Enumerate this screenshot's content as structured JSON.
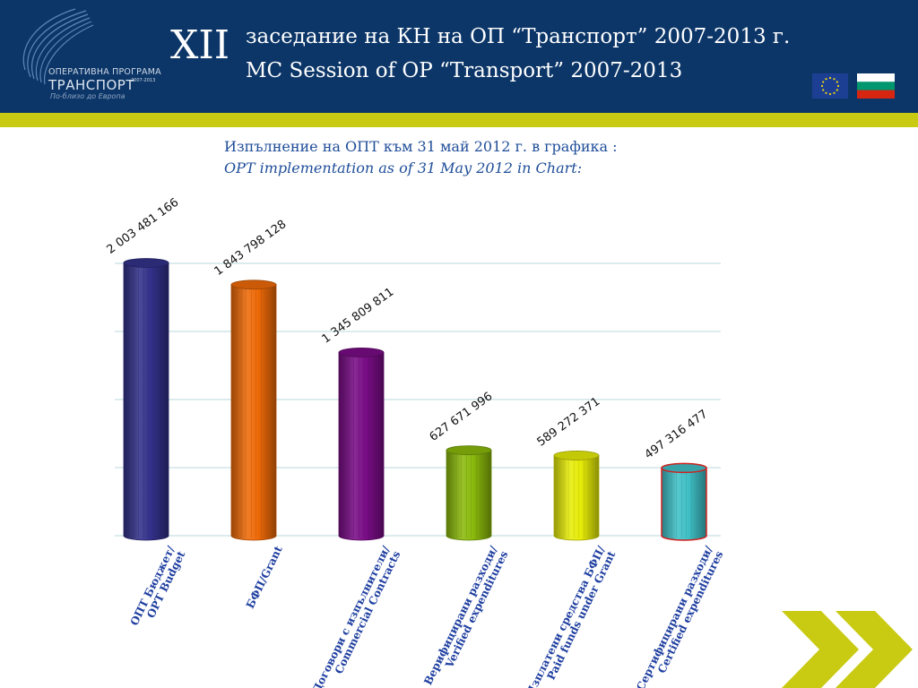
{
  "header": {
    "roman_numeral": "XII",
    "title_bg": "заседание на КН на ОП “Транспорт” 2007-2013 г.",
    "title_en": "MC Session of OP “Transport” 2007-2013",
    "logo": {
      "line1": "ОПЕРАТИВНА ПРОГРАМА",
      "line2": "ТРАНСПОРТ",
      "years": "2007-2013",
      "slogan": "По-близо до Европа"
    },
    "flags": [
      "eu-flag",
      "bulgaria-flag"
    ]
  },
  "subtitle": {
    "line1": "Изпълнение на ОПТ към 31 май 2012 г. в графика :",
    "line2": "OPT implementation as of 31 May 2012 in Chart:"
  },
  "colors": {
    "header_bg": "#0c3668",
    "accent_band": "#c9ca12",
    "subtitle_text": "#1f4e99",
    "label_text": "#1f3fa0"
  },
  "chart_data": {
    "type": "bar",
    "bar_shape": "cylinder",
    "grid": true,
    "ylim": [
      0,
      2000000000
    ],
    "categories": [
      [
        "ОПТ Бюджет/",
        "OPT Budget"
      ],
      [
        "БФП/Grant"
      ],
      [
        "Договори с изпълнители/",
        "Commercial Contracts"
      ],
      [
        "Верифицирани разходи/",
        "Verified expenditures"
      ],
      [
        "Изплатени средства БФП/",
        "Paid funds under Grant"
      ],
      [
        "Сертифицирани разходи/",
        "Certified expenditures"
      ]
    ],
    "values": [
      2003481166,
      1843798128,
      1345809811,
      627671996,
      589272371,
      497316477
    ],
    "value_labels": [
      "2 003 481 166",
      "1 843 798 128",
      "1 345 809 811",
      "627 671 996",
      "589 272 371",
      "497 316 477"
    ],
    "bar_colors": [
      "#33318a",
      "#ee6a08",
      "#790d86",
      "#8ab90c",
      "#e6ec08",
      "#3fc0c6"
    ],
    "highlighted_bar": 5,
    "highlight_outline": "#d12020"
  }
}
